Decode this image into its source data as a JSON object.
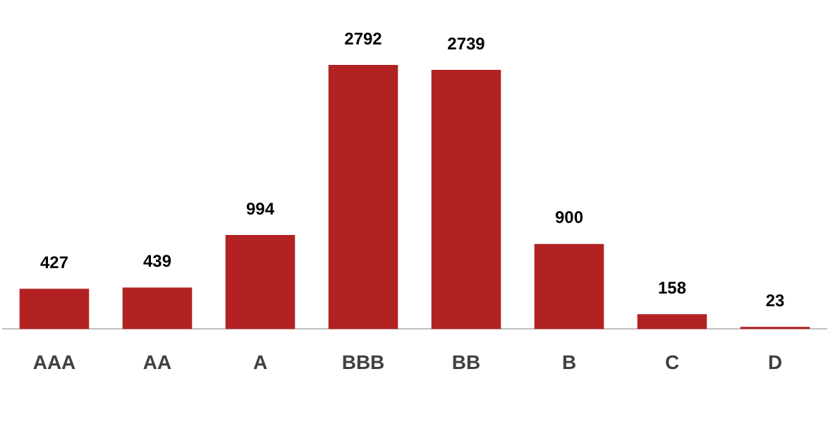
{
  "chart_data": {
    "type": "bar",
    "categories": [
      "AAA",
      "AA",
      "A",
      "BBB",
      "BB",
      "B",
      "C",
      "D"
    ],
    "values": [
      427,
      439,
      994,
      2792,
      2739,
      900,
      158,
      23
    ],
    "color": "#b22222",
    "data_labels": true,
    "grid": false,
    "legend": false
  }
}
